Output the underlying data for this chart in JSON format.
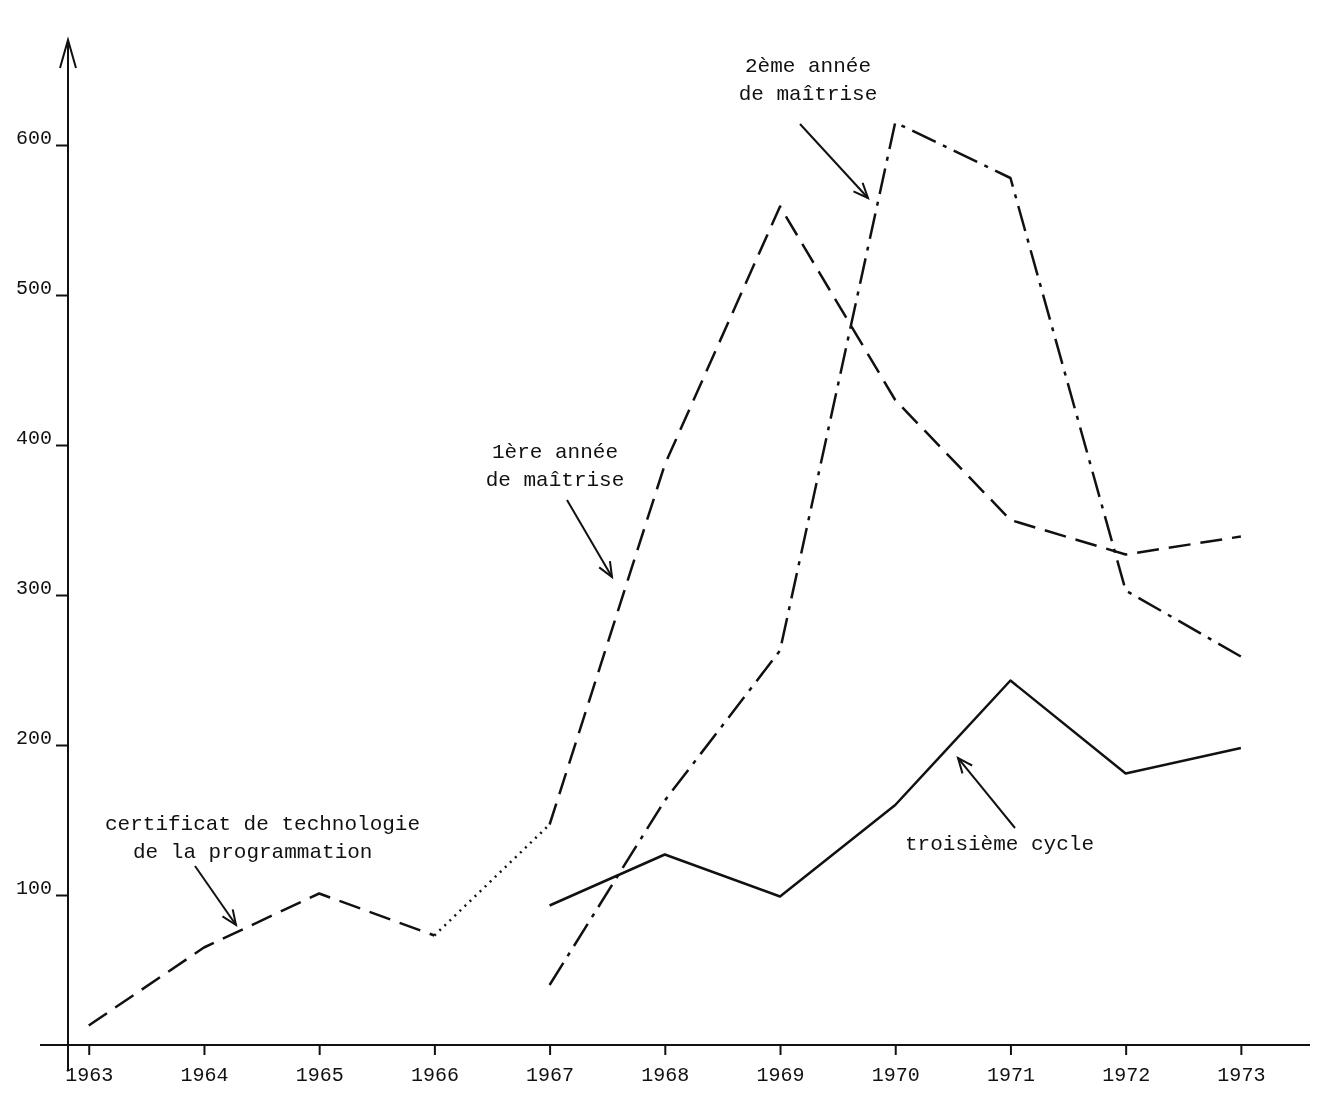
{
  "chart_data": {
    "type": "line",
    "xlim": [
      1962.82,
      1973.6
    ],
    "ylim": [
      0,
      670
    ],
    "xticks": [
      1963,
      1964,
      1965,
      1966,
      1967,
      1968,
      1969,
      1970,
      1971,
      1972,
      1973
    ],
    "yticks": [
      100,
      200,
      300,
      400,
      500,
      600
    ],
    "grid": false,
    "marker": "none",
    "series": [
      {
        "name": "certificat de technologie de la programmation",
        "color": "#111111",
        "line_style": "dashed",
        "x": [
          1963,
          1964,
          1965,
          1966
        ],
        "values": [
          13,
          65,
          101,
          73
        ]
      },
      {
        "color": "#111111",
        "line_style": "dotted",
        "x": [
          1966,
          1967
        ],
        "values": [
          73,
          147
        ]
      },
      {
        "name": "1ère année de maîtrise",
        "color": "#111111",
        "line_style": "dashed",
        "x": [
          1967,
          1968,
          1969,
          1970,
          1971,
          1972,
          1973
        ],
        "values": [
          147,
          387,
          559,
          430,
          350,
          327,
          339
        ]
      },
      {
        "name": "2ème année de maîtrise",
        "color": "#111111",
        "line_style": "dashdot",
        "x": [
          1967,
          1968,
          1969,
          1970,
          1971,
          1972,
          1973
        ],
        "values": [
          40,
          163,
          263,
          615,
          578,
          303,
          259
        ]
      },
      {
        "name": "troisième cycle",
        "color": "#111111",
        "line_style": "solid",
        "x": [
          1967,
          1968,
          1969,
          1970,
          1971,
          1972,
          1973
        ],
        "values": [
          93,
          127,
          99,
          160,
          243,
          181,
          198
        ]
      }
    ]
  }
}
